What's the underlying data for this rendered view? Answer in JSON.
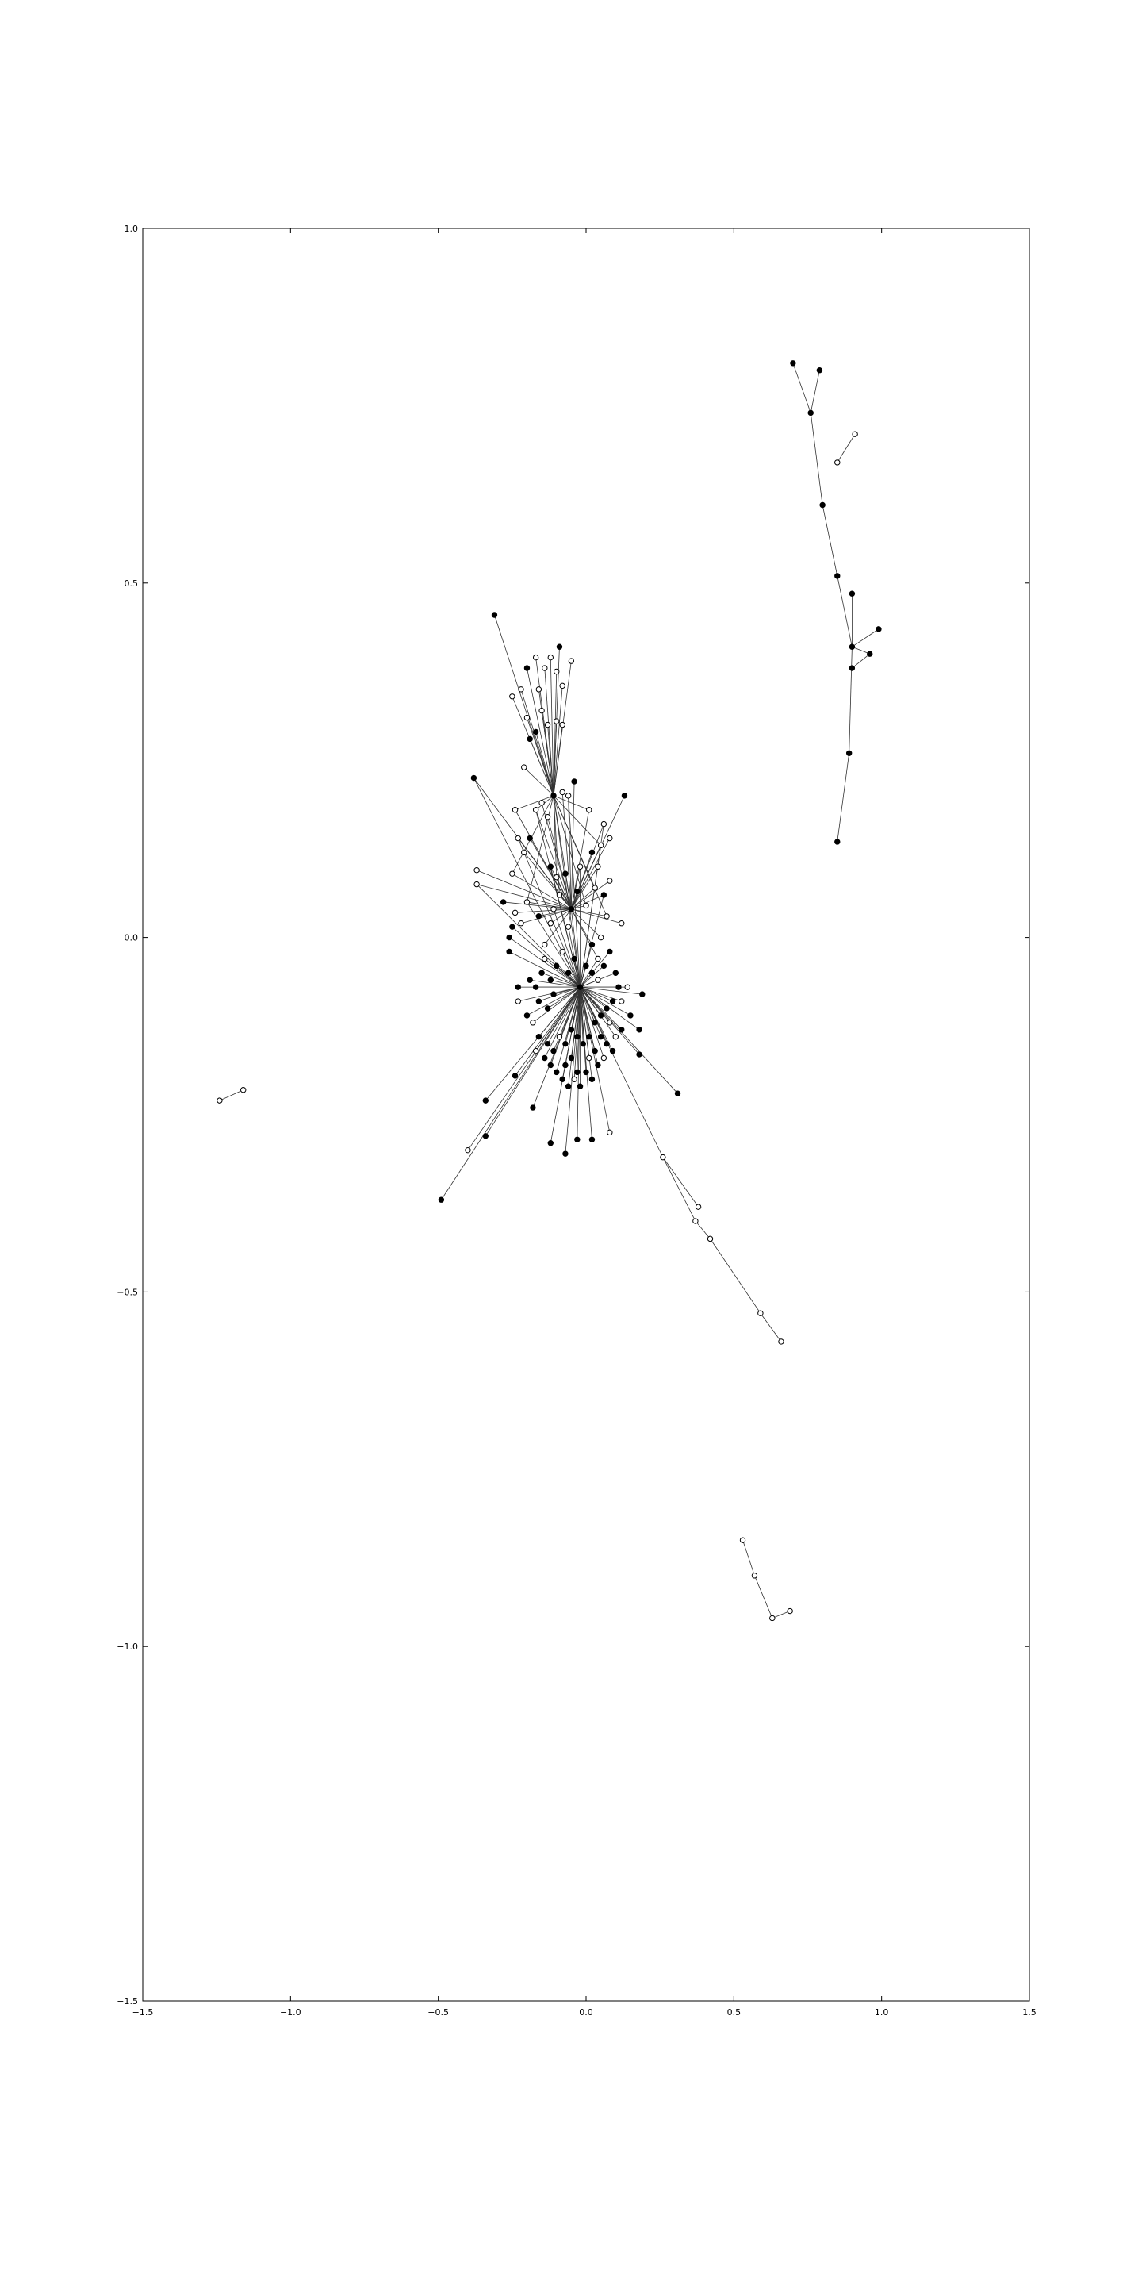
{
  "chart_data": {
    "type": "scatter",
    "title": "",
    "xlabel": "",
    "ylabel": "",
    "xlim": [
      -1.5,
      1.5
    ],
    "ylim": [
      -1.5,
      1.0
    ],
    "grid": false,
    "legend": "none",
    "xticks": [
      "−1.5",
      "−1.0",
      "−0.5",
      "0.0",
      "0.5",
      "1.0",
      "1.5"
    ],
    "yticks": [
      "1.0",
      "0.5",
      "0.0",
      "−0.5",
      "−1.0",
      "−1.5"
    ],
    "colors": {
      "edge": "#333333",
      "node_fill_hub": "#000000",
      "node_fill_leaf": "#ffffff",
      "axes": "#000000"
    },
    "hubs": [
      {
        "id": "A",
        "x": -0.11,
        "y": 0.2
      },
      {
        "id": "B",
        "x": -0.02,
        "y": -0.07
      },
      {
        "id": "C",
        "x": -0.05,
        "y": 0.04
      }
    ],
    "component_main_leaves": {
      "A": [
        [
          -0.31,
          0.455
        ],
        [
          -0.17,
          0.395
        ],
        [
          -0.14,
          0.38
        ],
        [
          -0.12,
          0.395
        ],
        [
          -0.09,
          0.41
        ],
        [
          -0.1,
          0.375
        ],
        [
          -0.08,
          0.355
        ],
        [
          -0.05,
          0.39
        ],
        [
          -0.2,
          0.38
        ],
        [
          -0.22,
          0.35
        ],
        [
          -0.25,
          0.34
        ],
        [
          -0.2,
          0.31
        ],
        [
          -0.17,
          0.29
        ],
        [
          -0.13,
          0.3
        ],
        [
          -0.1,
          0.305
        ],
        [
          -0.08,
          0.3
        ],
        [
          -0.19,
          0.28
        ],
        [
          -0.16,
          0.35
        ],
        [
          -0.21,
          0.24
        ],
        [
          -0.15,
          0.32
        ]
      ],
      "C": [
        [
          -0.38,
          0.225
        ],
        [
          -0.24,
          0.18
        ],
        [
          -0.37,
          0.095
        ],
        [
          -0.37,
          0.075
        ],
        [
          -0.28,
          0.05
        ],
        [
          -0.25,
          0.09
        ],
        [
          -0.23,
          0.14
        ],
        [
          -0.21,
          0.12
        ],
        [
          -0.19,
          0.14
        ],
        [
          -0.17,
          0.18
        ],
        [
          -0.15,
          0.19
        ],
        [
          -0.13,
          0.17
        ],
        [
          -0.12,
          0.1
        ],
        [
          -0.1,
          0.085
        ],
        [
          -0.08,
          0.205
        ],
        [
          -0.06,
          0.2
        ],
        [
          -0.04,
          0.22
        ],
        [
          0.01,
          0.18
        ],
        [
          0.06,
          0.16
        ],
        [
          0.08,
          0.14
        ],
        [
          0.13,
          0.2
        ],
        [
          0.05,
          0.13
        ],
        [
          0.04,
          0.1
        ],
        [
          0.08,
          0.08
        ],
        [
          0.06,
          0.06
        ],
        [
          0.03,
          0.07
        ],
        [
          0.12,
          0.02
        ],
        [
          -0.02,
          0.1
        ],
        [
          -0.07,
          0.09
        ],
        [
          -0.09,
          0.06
        ],
        [
          -0.11,
          0.04
        ],
        [
          -0.12,
          0.02
        ],
        [
          -0.16,
          0.03
        ],
        [
          -0.2,
          0.05
        ],
        [
          -0.22,
          0.02
        ],
        [
          -0.24,
          0.035
        ],
        [
          0.02,
          -0.01
        ],
        [
          0.07,
          0.03
        ],
        [
          0.05,
          0.0
        ],
        [
          0.04,
          -0.03
        ],
        [
          -0.03,
          0.065
        ],
        [
          0.0,
          0.045
        ],
        [
          -0.06,
          0.015
        ],
        [
          -0.14,
          -0.01
        ],
        [
          0.02,
          0.12
        ]
      ],
      "B": [
        [
          -0.25,
          0.015
        ],
        [
          -0.26,
          0.0
        ],
        [
          -0.26,
          -0.02
        ],
        [
          -0.23,
          -0.07
        ],
        [
          -0.23,
          -0.09
        ],
        [
          -0.19,
          -0.06
        ],
        [
          -0.17,
          -0.07
        ],
        [
          -0.16,
          -0.09
        ],
        [
          -0.15,
          -0.05
        ],
        [
          -0.14,
          -0.03
        ],
        [
          -0.12,
          -0.06
        ],
        [
          -0.11,
          -0.08
        ],
        [
          -0.13,
          -0.1
        ],
        [
          -0.1,
          -0.04
        ],
        [
          -0.08,
          -0.02
        ],
        [
          -0.06,
          -0.05
        ],
        [
          -0.04,
          -0.03
        ],
        [
          0.0,
          -0.04
        ],
        [
          0.02,
          -0.05
        ],
        [
          0.04,
          -0.06
        ],
        [
          0.06,
          -0.04
        ],
        [
          0.08,
          -0.02
        ],
        [
          0.1,
          -0.05
        ],
        [
          0.11,
          -0.07
        ],
        [
          0.12,
          -0.09
        ],
        [
          0.09,
          -0.09
        ],
        [
          0.07,
          -0.1
        ],
        [
          0.05,
          -0.11
        ],
        [
          0.03,
          -0.12
        ],
        [
          0.14,
          -0.07
        ],
        [
          0.19,
          -0.08
        ],
        [
          0.18,
          -0.13
        ],
        [
          0.15,
          -0.11
        ],
        [
          0.12,
          -0.13
        ],
        [
          0.1,
          -0.14
        ],
        [
          0.09,
          -0.16
        ],
        [
          0.07,
          -0.15
        ],
        [
          0.05,
          -0.14
        ],
        [
          0.03,
          -0.16
        ],
        [
          0.01,
          -0.17
        ],
        [
          -0.01,
          -0.15
        ],
        [
          -0.03,
          -0.14
        ],
        [
          -0.05,
          -0.13
        ],
        [
          -0.07,
          -0.15
        ],
        [
          -0.09,
          -0.14
        ],
        [
          -0.11,
          -0.16
        ],
        [
          -0.13,
          -0.15
        ],
        [
          -0.14,
          -0.17
        ],
        [
          -0.16,
          -0.14
        ],
        [
          -0.17,
          -0.16
        ],
        [
          -0.12,
          -0.18
        ],
        [
          -0.1,
          -0.19
        ],
        [
          -0.08,
          -0.2
        ],
        [
          -0.06,
          -0.21
        ],
        [
          -0.04,
          -0.2
        ],
        [
          -0.02,
          -0.21
        ],
        [
          0.0,
          -0.19
        ],
        [
          0.02,
          -0.2
        ],
        [
          0.04,
          -0.18
        ],
        [
          0.06,
          -0.17
        ],
        [
          -0.07,
          -0.18
        ],
        [
          -0.05,
          -0.17
        ],
        [
          -0.03,
          -0.19
        ],
        [
          0.01,
          -0.14
        ],
        [
          0.08,
          -0.12
        ],
        [
          -0.12,
          -0.29
        ],
        [
          -0.07,
          -0.305
        ],
        [
          -0.03,
          -0.285
        ],
        [
          0.02,
          -0.285
        ],
        [
          0.08,
          -0.275
        ],
        [
          -0.18,
          -0.24
        ],
        [
          -0.24,
          -0.195
        ],
        [
          -0.34,
          -0.28
        ],
        [
          -0.34,
          -0.23
        ],
        [
          -0.4,
          -0.3
        ],
        [
          -0.49,
          -0.37
        ],
        [
          0.18,
          -0.165
        ],
        [
          0.31,
          -0.22
        ],
        [
          -0.2,
          -0.11
        ],
        [
          -0.18,
          -0.12
        ]
      ]
    },
    "component_main_chain": {
      "nodes": [
        [
          -0.02,
          -0.07
        ],
        [
          0.26,
          -0.31
        ],
        [
          0.38,
          -0.38
        ],
        [
          0.37,
          -0.4
        ],
        [
          0.42,
          -0.425
        ],
        [
          0.59,
          -0.53
        ],
        [
          0.66,
          -0.57
        ]
      ],
      "edges": [
        [
          0,
          1
        ],
        [
          1,
          2
        ],
        [
          1,
          3
        ],
        [
          3,
          4
        ],
        [
          4,
          5
        ],
        [
          5,
          6
        ]
      ]
    },
    "component_right": {
      "nodes": [
        [
          0.7,
          0.81
        ],
        [
          0.79,
          0.8
        ],
        [
          0.76,
          0.74
        ],
        [
          0.8,
          0.61
        ],
        [
          0.85,
          0.51
        ],
        [
          0.9,
          0.485
        ],
        [
          0.9,
          0.41
        ],
        [
          0.99,
          0.435
        ],
        [
          0.96,
          0.4
        ],
        [
          0.9,
          0.38
        ],
        [
          0.89,
          0.26
        ],
        [
          0.85,
          0.135
        ]
      ],
      "edges": [
        [
          0,
          2
        ],
        [
          1,
          2
        ],
        [
          2,
          3
        ],
        [
          3,
          4
        ],
        [
          4,
          6
        ],
        [
          5,
          6
        ],
        [
          6,
          7
        ],
        [
          6,
          8
        ],
        [
          8,
          9
        ],
        [
          6,
          10
        ],
        [
          10,
          11
        ]
      ],
      "filled": true
    },
    "component_pair_right": {
      "nodes": [
        [
          0.85,
          0.67
        ],
        [
          0.91,
          0.71
        ]
      ],
      "edges": [
        [
          0,
          1
        ]
      ],
      "filled": false
    },
    "component_pair_left": {
      "nodes": [
        [
          -1.24,
          -0.23
        ],
        [
          -1.16,
          -0.215
        ]
      ],
      "edges": [
        [
          0,
          1
        ]
      ],
      "filled": false
    },
    "component_bottom": {
      "nodes": [
        [
          0.53,
          -0.85
        ],
        [
          0.57,
          -0.9
        ],
        [
          0.63,
          -0.96
        ],
        [
          0.69,
          -0.95
        ]
      ],
      "edges": [
        [
          0,
          1
        ],
        [
          1,
          2
        ],
        [
          2,
          3
        ]
      ],
      "filled": false
    }
  }
}
